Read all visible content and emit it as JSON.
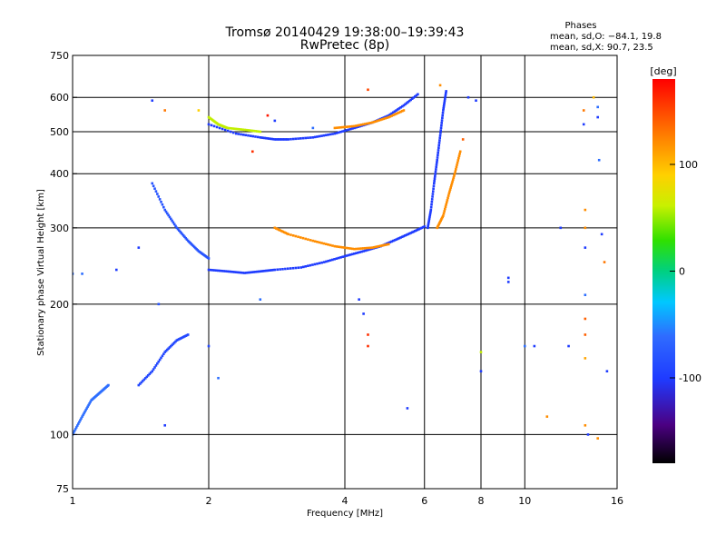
{
  "chart_data": {
    "type": "scatter",
    "title": "Tromsø 20140429 19:38:00–19:39:43",
    "subtitle": "RwPretec (8p)",
    "xlabel": "Frequency [MHz]",
    "ylabel": "Stationary phase Virtual Height [km]",
    "x_scale": "log",
    "y_scale": "log",
    "xlim": [
      1,
      16
    ],
    "ylim": [
      75,
      750
    ],
    "x_ticks": [
      1,
      2,
      4,
      6,
      8,
      10,
      16
    ],
    "y_ticks": [
      75,
      100,
      200,
      300,
      400,
      500,
      600,
      750
    ],
    "x_grid": [
      2,
      4,
      6,
      8,
      10
    ],
    "y_grid": [
      100,
      200,
      300,
      400,
      500,
      600
    ],
    "phases_info": {
      "heading": "Phases",
      "line1": "mean, sd,O: −84.1, 19.8",
      "line2": "mean, sd,X:  90.7, 23.5"
    },
    "colorbar": {
      "label": "[deg]",
      "min": -180,
      "max": 180,
      "ticks": [
        100,
        0,
        -100
      ]
    },
    "traces": [
      {
        "x": [
          2.0,
          2.3,
          2.6,
          2.8,
          3.0,
          3.4,
          3.8,
          4.2,
          4.6,
          5.0,
          5.4,
          5.8
        ],
        "y": [
          520,
          495,
          485,
          480,
          480,
          485,
          495,
          510,
          525,
          545,
          575,
          610
        ],
        "phase": -100
      },
      {
        "x": [
          2.0,
          2.2,
          2.4,
          2.6,
          2.8,
          3.2,
          3.6,
          4.0,
          4.4,
          4.8,
          5.2,
          5.6,
          6.0
        ],
        "y": [
          240,
          238,
          236,
          238,
          240,
          243,
          250,
          258,
          265,
          272,
          282,
          292,
          302
        ],
        "phase": -100
      },
      {
        "x": [
          2.8,
          3.0,
          3.4,
          3.8,
          4.2,
          4.6,
          5.0
        ],
        "y": [
          300,
          290,
          280,
          272,
          268,
          270,
          275
        ],
        "phase": 120
      },
      {
        "x": [
          1.5,
          1.6,
          1.7,
          1.8,
          1.9,
          2.0
        ],
        "y": [
          380,
          330,
          300,
          280,
          265,
          255
        ],
        "phase": -80
      },
      {
        "x": [
          6.1,
          6.2,
          6.3,
          6.4,
          6.5,
          6.6,
          6.7
        ],
        "y": [
          300,
          330,
          380,
          430,
          490,
          560,
          620
        ],
        "phase": -100
      },
      {
        "x": [
          6.4,
          6.6,
          6.8,
          7.0,
          7.2
        ],
        "y": [
          300,
          320,
          360,
          400,
          450
        ],
        "phase": 120
      },
      {
        "x": [
          1.4,
          1.5,
          1.6,
          1.7,
          1.8
        ],
        "y": [
          130,
          140,
          155,
          165,
          170
        ],
        "phase": -90
      },
      {
        "x": [
          1.0,
          1.05,
          1.1,
          1.15,
          1.2
        ],
        "y": [
          100,
          110,
          120,
          125,
          130
        ],
        "phase": -60
      },
      {
        "x": [
          2.0,
          2.1,
          2.2,
          2.4,
          2.6
        ],
        "y": [
          540,
          520,
          510,
          505,
          500
        ],
        "phase": 60
      },
      {
        "x": [
          3.8,
          4.2,
          4.6,
          5.0,
          5.4
        ],
        "y": [
          510,
          515,
          525,
          540,
          560
        ],
        "phase": 120
      }
    ],
    "points": [
      {
        "x": 1.0,
        "y": 235,
        "phase": -60
      },
      {
        "x": 1.05,
        "y": 235,
        "phase": -60
      },
      {
        "x": 1.25,
        "y": 240,
        "phase": -100
      },
      {
        "x": 1.4,
        "y": 270,
        "phase": -100
      },
      {
        "x": 1.5,
        "y": 590,
        "phase": -100
      },
      {
        "x": 1.6,
        "y": 560,
        "phase": 130
      },
      {
        "x": 1.55,
        "y": 200,
        "phase": -80
      },
      {
        "x": 1.6,
        "y": 105,
        "phase": -100
      },
      {
        "x": 1.9,
        "y": 560,
        "phase": 90
      },
      {
        "x": 2.1,
        "y": 135,
        "phase": -60
      },
      {
        "x": 2.0,
        "y": 160,
        "phase": -90
      },
      {
        "x": 2.6,
        "y": 205,
        "phase": -60
      },
      {
        "x": 2.8,
        "y": 530,
        "phase": -100
      },
      {
        "x": 4.3,
        "y": 205,
        "phase": -100
      },
      {
        "x": 4.4,
        "y": 190,
        "phase": -100
      },
      {
        "x": 4.5,
        "y": 170,
        "phase": 160
      },
      {
        "x": 4.5,
        "y": 160,
        "phase": 160
      },
      {
        "x": 4.5,
        "y": 625,
        "phase": 150
      },
      {
        "x": 5.5,
        "y": 115,
        "phase": -100
      },
      {
        "x": 7.5,
        "y": 600,
        "phase": -100
      },
      {
        "x": 7.8,
        "y": 590,
        "phase": -100
      },
      {
        "x": 8.0,
        "y": 140,
        "phase": -100
      },
      {
        "x": 8.0,
        "y": 155,
        "phase": 60
      },
      {
        "x": 9.2,
        "y": 230,
        "phase": -100
      },
      {
        "x": 9.2,
        "y": 225,
        "phase": -100
      },
      {
        "x": 10.0,
        "y": 160,
        "phase": -60
      },
      {
        "x": 10.5,
        "y": 160,
        "phase": -100
      },
      {
        "x": 11.2,
        "y": 110,
        "phase": 120
      },
      {
        "x": 12.0,
        "y": 300,
        "phase": -100
      },
      {
        "x": 12.5,
        "y": 160,
        "phase": -100
      },
      {
        "x": 13.5,
        "y": 560,
        "phase": 130
      },
      {
        "x": 13.5,
        "y": 520,
        "phase": -100
      },
      {
        "x": 13.6,
        "y": 330,
        "phase": 120
      },
      {
        "x": 13.6,
        "y": 300,
        "phase": 120
      },
      {
        "x": 13.6,
        "y": 270,
        "phase": -100
      },
      {
        "x": 13.6,
        "y": 210,
        "phase": -60
      },
      {
        "x": 13.6,
        "y": 185,
        "phase": 140
      },
      {
        "x": 13.6,
        "y": 170,
        "phase": 140
      },
      {
        "x": 13.6,
        "y": 150,
        "phase": 110
      },
      {
        "x": 13.6,
        "y": 105,
        "phase": 120
      },
      {
        "x": 13.8,
        "y": 100,
        "phase": -100
      },
      {
        "x": 14.2,
        "y": 600,
        "phase": 100
      },
      {
        "x": 14.5,
        "y": 570,
        "phase": -60
      },
      {
        "x": 14.5,
        "y": 540,
        "phase": -100
      },
      {
        "x": 14.6,
        "y": 430,
        "phase": -60
      },
      {
        "x": 14.8,
        "y": 290,
        "phase": -100
      },
      {
        "x": 15.0,
        "y": 250,
        "phase": 130
      },
      {
        "x": 15.2,
        "y": 140,
        "phase": -100
      },
      {
        "x": 14.5,
        "y": 98,
        "phase": 120
      },
      {
        "x": 6.5,
        "y": 640,
        "phase": 120
      },
      {
        "x": 7.3,
        "y": 480,
        "phase": 140
      },
      {
        "x": 3.4,
        "y": 510,
        "phase": -60
      },
      {
        "x": 2.7,
        "y": 545,
        "phase": 170
      },
      {
        "x": 2.5,
        "y": 450,
        "phase": 160
      }
    ]
  }
}
